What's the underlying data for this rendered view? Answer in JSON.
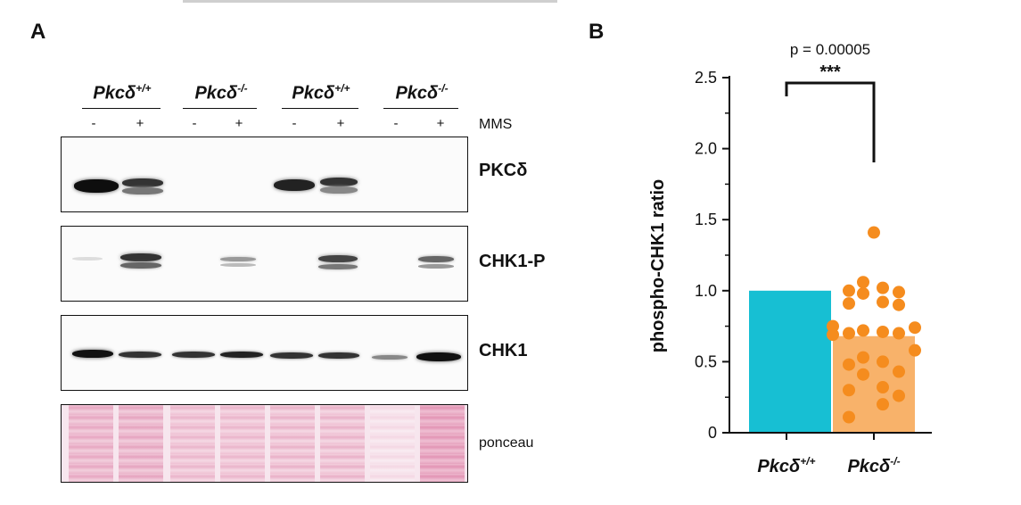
{
  "panel_a": {
    "letter": "A",
    "genotypes": [
      {
        "name": "Pkcδ",
        "sup": "+/+"
      },
      {
        "name": "Pkcδ",
        "sup": "-/-"
      },
      {
        "name": "Pkcδ",
        "sup": "+/+"
      },
      {
        "name": "Pkcδ",
        "sup": "-/-"
      }
    ],
    "treatment_signs": [
      "-",
      "+",
      "-",
      "+",
      "-",
      "+",
      "-",
      "+"
    ],
    "treatment_label": "MMS",
    "blots": [
      {
        "label": "PKCδ"
      },
      {
        "label": "CHK1-P"
      },
      {
        "label": "CHK1"
      },
      {
        "label": "ponceau"
      }
    ]
  },
  "panel_b": {
    "letter": "B"
  },
  "chart_data": {
    "type": "bar",
    "categories": [
      "Pkcδ+/+",
      "Pkcδ-/-"
    ],
    "category_labels": [
      {
        "name": "Pkcδ",
        "sup": "+/+"
      },
      {
        "name": "Pkcδ",
        "sup": "-/-"
      }
    ],
    "values": [
      1.0,
      0.68
    ],
    "colors": [
      "#17bfd3",
      "#f8b26a"
    ],
    "points_color": "#f58c1e",
    "points": [
      1.41,
      1.06,
      1.02,
      1.0,
      0.99,
      0.98,
      0.92,
      0.91,
      0.9,
      0.75,
      0.74,
      0.72,
      0.71,
      0.7,
      0.7,
      0.69,
      0.58,
      0.53,
      0.5,
      0.48,
      0.43,
      0.41,
      0.32,
      0.3,
      0.26,
      0.2,
      0.11
    ],
    "ylabel": "phospho-CHK1 ratio",
    "ylim": [
      0,
      2.5
    ],
    "yticks": [
      "0",
      "0.5",
      "1.0",
      "1.5",
      "2.0",
      "2.5"
    ],
    "significance": {
      "p_text": "p = 0.00005",
      "stars": "***"
    }
  }
}
